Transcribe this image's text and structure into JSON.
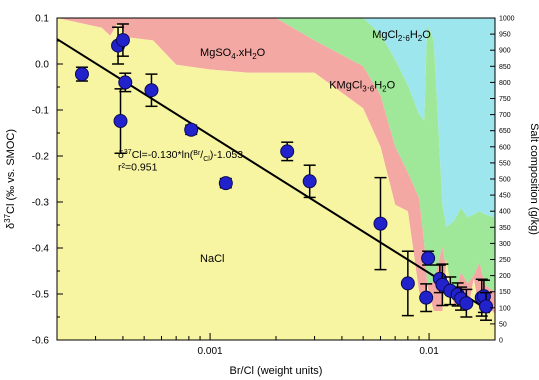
{
  "chart_data": {
    "type": "scatter",
    "xlabel": "Br/Cl (weight units)",
    "ylabel": "δ37Cl (‰ vs. SMOC)",
    "ylabel_right": "Salt composition (g/kg)",
    "x_scale": "log",
    "xlim": [
      0.0002,
      0.02
    ],
    "ylim": [
      -0.6,
      0.1
    ],
    "y2lim": [
      0,
      1000
    ],
    "x_ticks": [
      {
        "v": 0.001,
        "label": "0.001"
      },
      {
        "v": 0.01,
        "label": "0.01"
      }
    ],
    "y_ticks": [
      0.1,
      0.0,
      -0.1,
      -0.2,
      -0.3,
      -0.4,
      -0.5,
      -0.6
    ],
    "y_tick_labels": [
      "0.1",
      "0.0",
      "-0.1",
      "-0.2",
      "-0.3",
      "-0.4",
      "-0.5",
      "-0.6"
    ],
    "y2_ticks": [
      0,
      50,
      100,
      150,
      200,
      250,
      300,
      350,
      400,
      450,
      500,
      550,
      600,
      650,
      700,
      750,
      800,
      850,
      900,
      950,
      1000
    ],
    "y2_tick_labels": [
      "0",
      "50",
      "100",
      "150",
      "200",
      "250",
      "300",
      "350",
      "400",
      "450",
      "500",
      "550",
      "600",
      "650",
      "700",
      "750",
      "800",
      "850",
      "900",
      "950",
      "1000"
    ],
    "regions": [
      {
        "label": "NaCl",
        "color": "#f8f5a2"
      },
      {
        "label": "MgSO4.xH2O",
        "color": "#f4a8a4"
      },
      {
        "label": "KMgCl3.6H2O",
        "color": "#9fe89a"
      },
      {
        "label": "MgCl2.6H2O",
        "color": "#9ee6ee"
      }
    ],
    "region_label_x": [
      0.0009,
      0.0035,
      0.0055
    ],
    "region_label_y": [
      -0.43,
      0.017,
      -0.053,
      0.057
    ],
    "salt_composition": {
      "x": [
        0.0002,
        0.00032,
        0.00035,
        0.00038,
        0.00042,
        0.00055,
        0.0007,
        0.001,
        0.0015,
        0.002,
        0.003,
        0.005,
        0.006,
        0.007,
        0.008,
        0.009,
        0.0095,
        0.0098,
        0.0105,
        0.0115,
        0.012,
        0.013,
        0.014,
        0.015,
        0.016,
        0.017,
        0.018,
        0.02
      ],
      "nacl": [
        1000,
        970,
        945,
        985,
        940,
        930,
        855,
        840,
        830,
        830,
        830,
        720,
        600,
        420,
        400,
        150,
        120,
        170,
        90,
        90,
        250,
        110,
        110,
        90,
        190,
        90,
        120,
        80
      ],
      "mgso4": [
        1000,
        1000,
        1000,
        1000,
        1000,
        1000,
        1000,
        1000,
        1000,
        1000,
        930,
        850,
        760,
        600,
        520,
        440,
        300,
        170,
        180,
        290,
        210,
        140,
        210,
        175,
        200,
        240,
        170,
        150
      ],
      "kmgcl3": [
        1000,
        1000,
        1000,
        1000,
        1000,
        1000,
        1000,
        1000,
        1000,
        1000,
        1000,
        1000,
        950,
        870,
        790,
        700,
        680,
        980,
        930,
        420,
        350,
        370,
        410,
        380,
        390,
        400,
        390,
        380
      ]
    },
    "series": [
      {
        "color": "#2222cc",
        "x": [
          0.00026,
          0.00038,
          0.0004,
          0.00039,
          0.00041,
          0.00054,
          0.00082,
          0.00118,
          0.00225,
          0.00285,
          0.006,
          0.008,
          0.0097,
          0.0099,
          0.0112,
          0.0115,
          0.0125,
          0.0135,
          0.014,
          0.0148,
          0.0174,
          0.0178,
          0.0182
        ],
        "y": [
          -0.022,
          0.04,
          0.052,
          -0.124,
          -0.04,
          -0.057,
          -0.143,
          -0.259,
          -0.19,
          -0.255,
          -0.347,
          -0.477,
          -0.508,
          -0.422,
          -0.467,
          -0.48,
          -0.493,
          -0.501,
          -0.51,
          -0.52,
          -0.508,
          -0.505,
          -0.527
        ],
        "err": [
          0.015,
          0.04,
          0.035,
          0.07,
          0.02,
          0.035,
          0.01,
          0.01,
          0.02,
          0.035,
          0.1,
          0.07,
          0.03,
          0.015,
          0.03,
          0.045,
          0.03,
          0.025,
          0.025,
          0.03,
          0.04,
          0.035,
          0.03
        ]
      }
    ],
    "fit": {
      "slope": -0.13,
      "intercept": -1.053,
      "equation": "δ37Cl=-0.130*ln(Br/Cl)-1.053",
      "r2_text": "r²=0.951",
      "color": "#000000"
    },
    "annotation_x": 0.00038,
    "annotation_y": [
      -0.204,
      -0.232
    ],
    "grid": false
  }
}
